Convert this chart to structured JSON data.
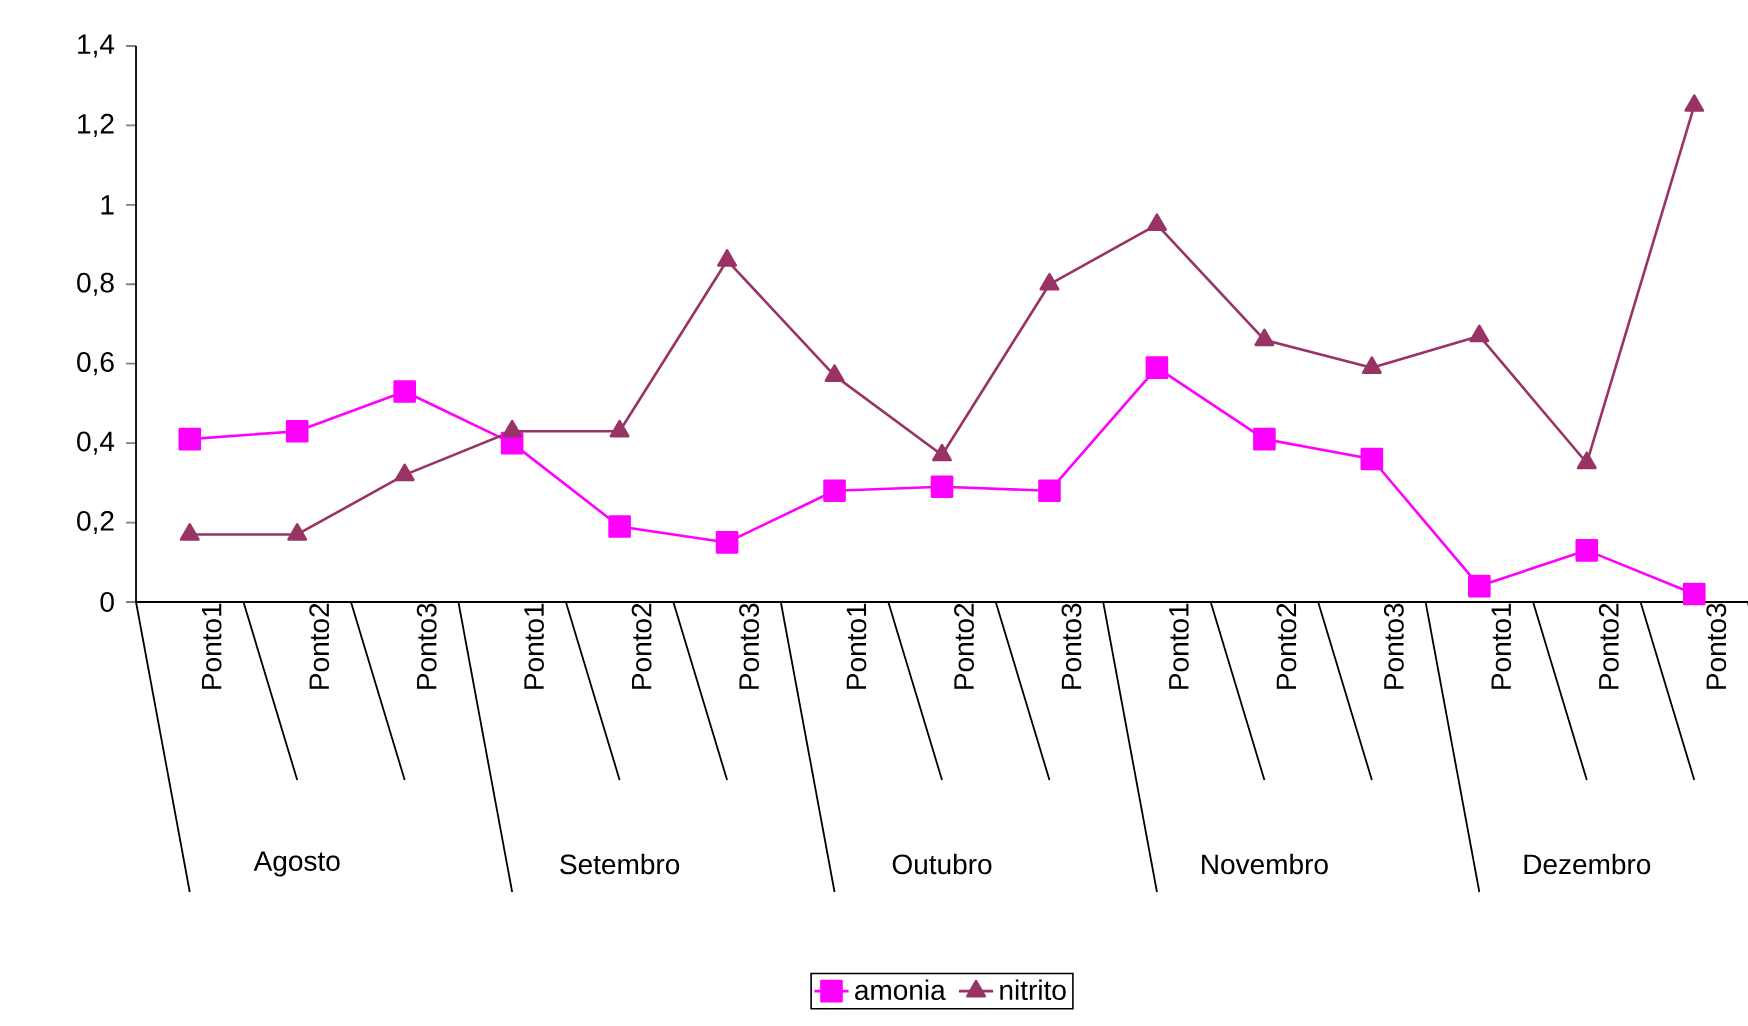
{
  "chart_data": {
    "type": "line",
    "categories": [
      "Ponto1",
      "Ponto2",
      "Ponto3",
      "Ponto1",
      "Ponto2",
      "Ponto3",
      "Ponto1",
      "Ponto2",
      "Ponto3",
      "Ponto1",
      "Ponto2",
      "Ponto3",
      "Ponto1",
      "Ponto2",
      "Ponto3"
    ],
    "annotations": [
      "Agosto",
      "Setembro",
      "Outubro",
      "Novembro",
      "Dezembro"
    ],
    "series": [
      {
        "name": "amonia",
        "color": "#ff00ff",
        "marker": "square",
        "values": [
          0.41,
          0.43,
          0.53,
          0.4,
          0.19,
          0.15,
          0.28,
          0.29,
          0.28,
          0.59,
          0.41,
          0.36,
          0.04,
          0.13,
          0.02
        ]
      },
      {
        "name": "nitrito",
        "color": "#993366",
        "marker": "triangle",
        "values": [
          0.17,
          0.17,
          0.32,
          0.43,
          0.43,
          0.86,
          0.57,
          0.37,
          0.8,
          0.95,
          0.66,
          0.59,
          0.67,
          0.35,
          1.25
        ]
      }
    ],
    "ylim": [
      0,
      1.4
    ],
    "yticks": [
      0,
      {
        "value": 0.2,
        "label": "0,2"
      },
      {
        "value": 0.4,
        "label": "0,4"
      },
      {
        "value": 0.6,
        "label": "0,6"
      },
      {
        "value": 0.8,
        "label": "0,8"
      },
      1,
      {
        "value": 1.2,
        "label": "1,2"
      },
      {
        "value": 1.4,
        "label": "1,4"
      }
    ],
    "grid": false,
    "legend": "bottom",
    "line_style": "solid"
  }
}
